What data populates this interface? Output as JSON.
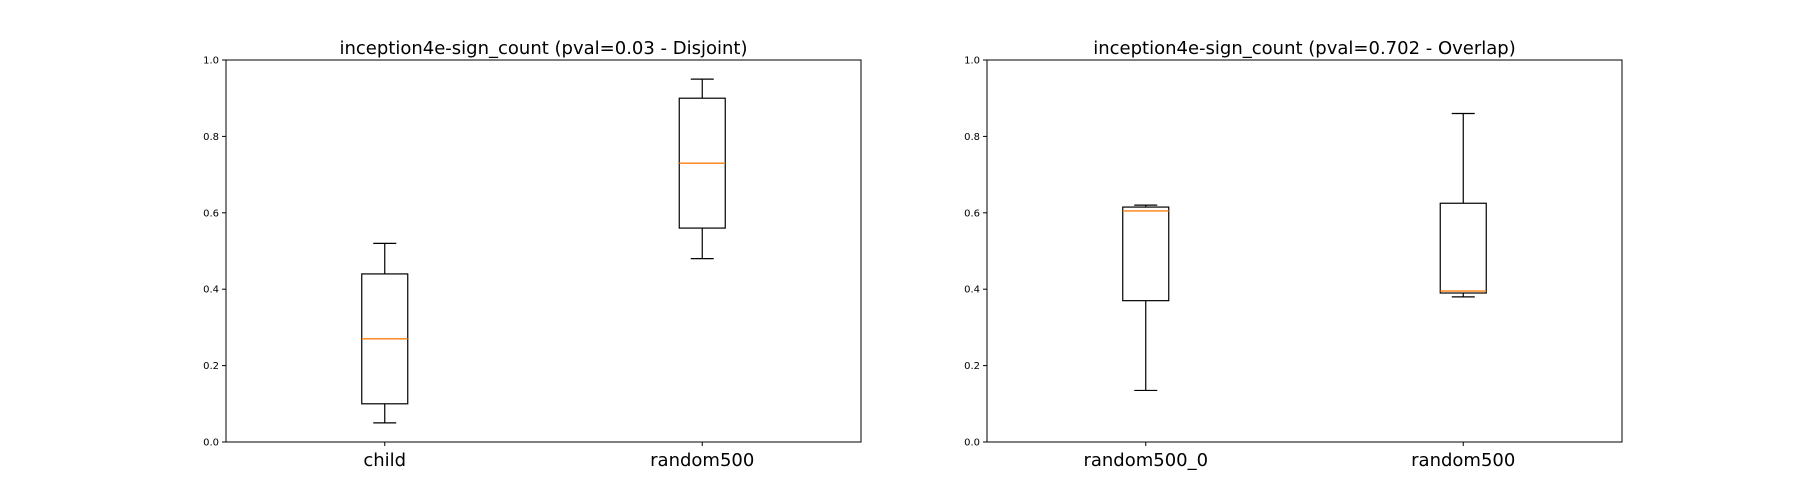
{
  "colors": {
    "median": "#ff7f0e",
    "box": "#000000"
  },
  "chart_data": [
    {
      "type": "box",
      "title": "inception4e-sign_count (pval=0.03 - Disjoint)",
      "xlabel": "",
      "ylabel": "",
      "ylim": [
        0.0,
        1.0
      ],
      "yticks": [
        "0.0",
        "0.2",
        "0.4",
        "0.6",
        "0.8",
        "1.0"
      ],
      "grid": false,
      "categories": [
        "child",
        "random500"
      ],
      "boxes": [
        {
          "category": "child",
          "whisker_low": 0.05,
          "q1": 0.1,
          "median": 0.27,
          "q3": 0.44,
          "whisker_high": 0.52
        },
        {
          "category": "random500",
          "whisker_low": 0.48,
          "q1": 0.56,
          "median": 0.73,
          "q3": 0.9,
          "whisker_high": 0.95
        }
      ]
    },
    {
      "type": "box",
      "title": "inception4e-sign_count (pval=0.702 - Overlap)",
      "xlabel": "",
      "ylabel": "",
      "ylim": [
        0.0,
        1.0
      ],
      "yticks": [
        "0.0",
        "0.2",
        "0.4",
        "0.6",
        "0.8",
        "1.0"
      ],
      "grid": false,
      "categories": [
        "random500_0",
        "random500"
      ],
      "boxes": [
        {
          "category": "random500_0",
          "whisker_low": 0.135,
          "q1": 0.37,
          "median": 0.605,
          "q3": 0.615,
          "whisker_high": 0.62
        },
        {
          "category": "random500",
          "whisker_low": 0.38,
          "q1": 0.39,
          "median": 0.395,
          "q3": 0.625,
          "whisker_high": 0.86
        }
      ]
    }
  ]
}
